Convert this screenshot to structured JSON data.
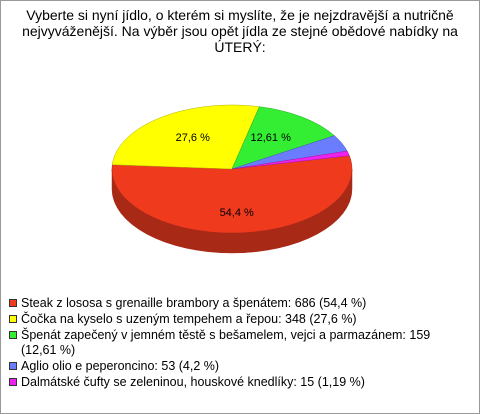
{
  "chart_data": {
    "type": "pie",
    "title": "Vyberte si nyní jídlo, o kterém si myslíte, že je nejzdravější a nutričně nejvyváženější. Na výběr jsou opět jídla ze stejné obědové nabídky na ÚTERÝ:",
    "categories": [
      "Steak z lososa s grenaille brambory a špenátem: 686 (54,4 %)",
      "Čočka na kyselo s uzeným tempehem a řepou: 348 (27,6 %)",
      "Špenát zapečený v jemném těstě s bešamelem, vejci a parmazánem: 159 (12,61 %)",
      "Aglio olio e peperoncino: 53 (4,2 %)",
      "Dalmátské čufty se zeleninou, houskové knedlíky: 15 (1,19 %)"
    ],
    "values": [
      54.4,
      27.6,
      12.61,
      4.2,
      1.19
    ],
    "value_labels": [
      "54,4 %",
      "27,6 %",
      "12,61 %",
      null,
      null
    ],
    "colors": [
      "#f03a1e",
      "#ffff00",
      "#33ee33",
      "#6a7dff",
      "#ee22ee"
    ]
  }
}
